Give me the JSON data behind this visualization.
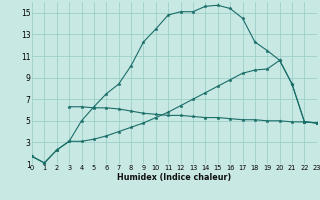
{
  "bg_color": "#c8e8e4",
  "grid_color": "#9ecec8",
  "line_color": "#1a6e68",
  "xlabel": "Humidex (Indice chaleur)",
  "xlim": [
    0,
    23
  ],
  "ylim": [
    1,
    16
  ],
  "yticks": [
    1,
    3,
    5,
    7,
    9,
    11,
    13,
    15
  ],
  "xticks": [
    0,
    1,
    2,
    3,
    4,
    5,
    6,
    7,
    8,
    9,
    10,
    11,
    12,
    13,
    14,
    15,
    16,
    17,
    18,
    19,
    20,
    21,
    22,
    23
  ],
  "curve1_x": [
    0,
    1,
    2,
    3,
    4,
    5,
    6,
    7,
    8,
    9,
    10,
    11,
    12,
    13,
    14,
    15,
    16,
    17,
    18,
    19,
    20,
    21,
    22,
    23
  ],
  "curve1_y": [
    1.7,
    1.1,
    2.3,
    3.1,
    5.0,
    6.3,
    7.5,
    8.4,
    10.1,
    12.3,
    13.5,
    14.8,
    15.1,
    15.1,
    15.6,
    15.7,
    15.4,
    14.5,
    12.3,
    11.5,
    10.6,
    8.4,
    4.9,
    4.8
  ],
  "curve2_x": [
    3,
    4,
    5,
    6,
    7,
    8,
    9,
    10,
    11,
    12,
    13,
    14,
    15,
    16,
    17,
    18,
    19,
    20,
    21,
    22,
    23
  ],
  "curve2_y": [
    6.3,
    6.3,
    6.2,
    6.2,
    6.1,
    5.9,
    5.7,
    5.6,
    5.5,
    5.5,
    5.4,
    5.3,
    5.3,
    5.2,
    5.1,
    5.1,
    5.0,
    5.0,
    4.9,
    4.9,
    4.8
  ],
  "curve3_x": [
    0,
    1,
    2,
    3,
    4,
    5,
    6,
    7,
    8,
    9,
    10,
    11,
    12,
    13,
    14,
    15,
    16,
    17,
    18,
    19,
    20,
    21,
    22,
    23
  ],
  "curve3_y": [
    1.7,
    1.1,
    2.3,
    3.1,
    3.1,
    3.3,
    3.6,
    4.0,
    4.4,
    4.8,
    5.3,
    5.8,
    6.4,
    7.0,
    7.6,
    8.2,
    8.8,
    9.4,
    9.7,
    9.8,
    10.6,
    8.4,
    4.9,
    4.8
  ],
  "xlabel_fontsize": 5.8,
  "tick_fontsize_x": 4.8,
  "tick_fontsize_y": 5.5,
  "linewidth": 0.8,
  "markersize": 2.5
}
